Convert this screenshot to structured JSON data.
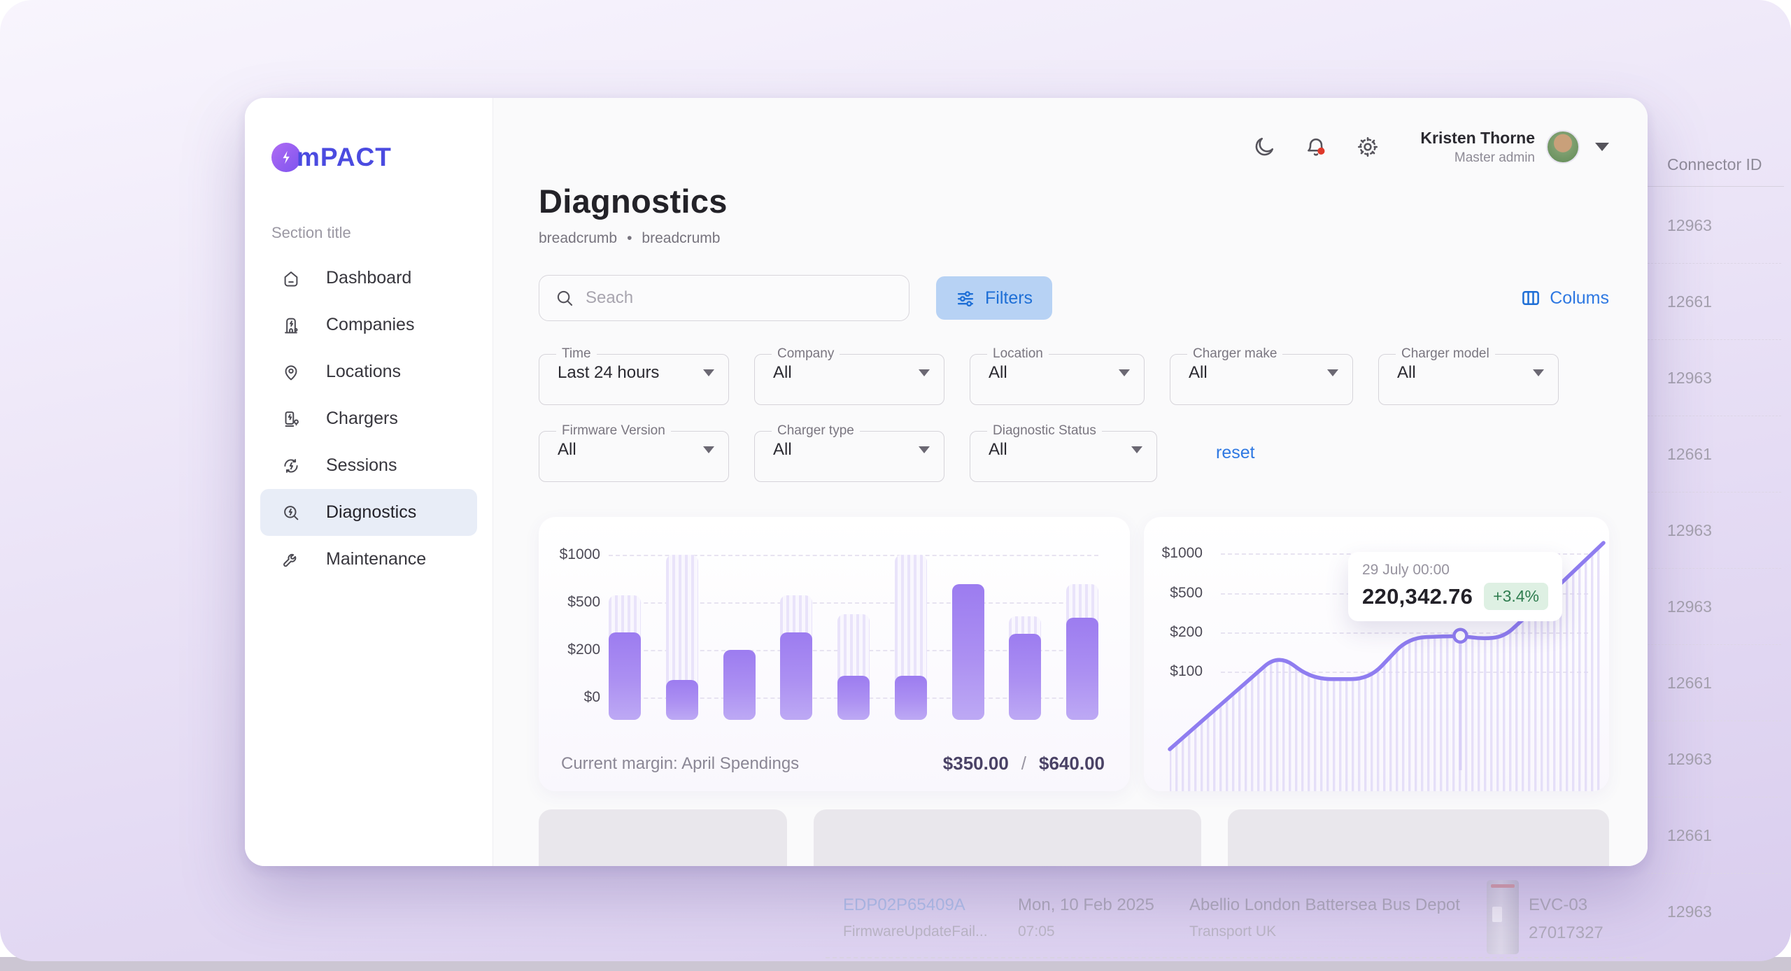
{
  "brand": {
    "logo_m": "m",
    "logo_rest": "PACT"
  },
  "sidebar": {
    "section_title": "Section title",
    "items": [
      {
        "label": "Dashboard"
      },
      {
        "label": "Companies"
      },
      {
        "label": "Locations"
      },
      {
        "label": "Chargers"
      },
      {
        "label": "Sessions"
      },
      {
        "label": "Diagnostics"
      },
      {
        "label": "Maintenance"
      }
    ]
  },
  "header": {
    "user_name": "Kristen Thorne",
    "user_role": "Master admin"
  },
  "page": {
    "title": "Diagnostics",
    "breadcrumb_1": "breadcrumb",
    "breadcrumb_sep": "•",
    "breadcrumb_2": "breadcrumb"
  },
  "toolbar": {
    "search_placeholder": "Seach",
    "filters_label": "Filters",
    "columns_label": "Colums",
    "reset_label": "reset"
  },
  "filters": {
    "row1": [
      {
        "label": "Time",
        "value": "Last 24 hours"
      },
      {
        "label": "Company",
        "value": "All"
      },
      {
        "label": "Location",
        "value": "All"
      },
      {
        "label": "Charger make",
        "value": "All"
      },
      {
        "label": "Charger model",
        "value": "All"
      }
    ],
    "row2": [
      {
        "label": "Firmware Version",
        "value": "All"
      },
      {
        "label": "Charger type",
        "value": "All"
      },
      {
        "label": "Diagnostic Status",
        "value": "All"
      }
    ]
  },
  "chart_data": [
    {
      "type": "bar",
      "title": "Current margin: April Spendings",
      "y_ticks": [
        "$1000",
        "$500",
        "$200",
        "$0"
      ],
      "value_scale_stops": [
        [
          0,
          0
        ],
        [
          200,
          33.3
        ],
        [
          500,
          66.7
        ],
        [
          1000,
          100
        ]
      ],
      "bars": [
        {
          "total": 575,
          "filled": 310
        },
        {
          "total": 1000,
          "filled": 75
        },
        {
          "total": 200,
          "filled": 200
        },
        {
          "total": 575,
          "filled": 310
        },
        {
          "total": 425,
          "filled": 90
        },
        {
          "total": 1000,
          "filled": 90
        },
        {
          "total": 690,
          "filled": 690
        },
        {
          "total": 410,
          "filled": 300
        },
        {
          "total": 690,
          "filled": 405
        }
      ],
      "footer_label": "Current margin: April Spendings",
      "current_value": "$350.00",
      "separator": "/",
      "total_value": "$640.00",
      "colors": {
        "bar_fill_top": "#9c7cf0",
        "bar_fill_bottom": "#bda9f4",
        "bar_ghost": "#e9e3fa"
      }
    },
    {
      "type": "area-line",
      "y_ticks": [
        "$1000",
        "$500",
        "$200",
        "$100"
      ],
      "points_pct": [
        [
          0,
          100
        ],
        [
          25,
          54
        ],
        [
          33,
          66
        ],
        [
          46,
          66
        ],
        [
          55,
          46
        ],
        [
          67,
          45
        ],
        [
          72,
          46.5
        ],
        [
          77,
          45.5
        ],
        [
          81,
          38
        ],
        [
          100,
          0
        ]
      ],
      "marker": {
        "x_pct": 67,
        "y_pct": 45
      },
      "tooltip": {
        "timestamp": "29 July 00:00",
        "value": "220,342.76",
        "delta": "+3.4%"
      },
      "colors": {
        "line": "#8f7df0",
        "area_stripe": "#ded6f7",
        "delta_bg": "#def0e3",
        "delta_text": "#2f7d4f"
      }
    }
  ],
  "background_table": {
    "connector_header": "Connector ID",
    "connector_values": [
      "12963",
      "12661",
      "12963",
      "12661",
      "12963",
      "12963",
      "12661",
      "12963",
      "12661",
      "12963"
    ],
    "bottom_row": {
      "charge_point_id": "EDP02P65409A",
      "error": "FirmwareUpdateFail...",
      "date": "Mon, 10 Feb 2025",
      "time": "07:05",
      "location": "Abellio London Battersea Bus Depot",
      "company": "Transport UK",
      "charger_model": "EVC-03",
      "charger_serial": "27017327"
    }
  }
}
